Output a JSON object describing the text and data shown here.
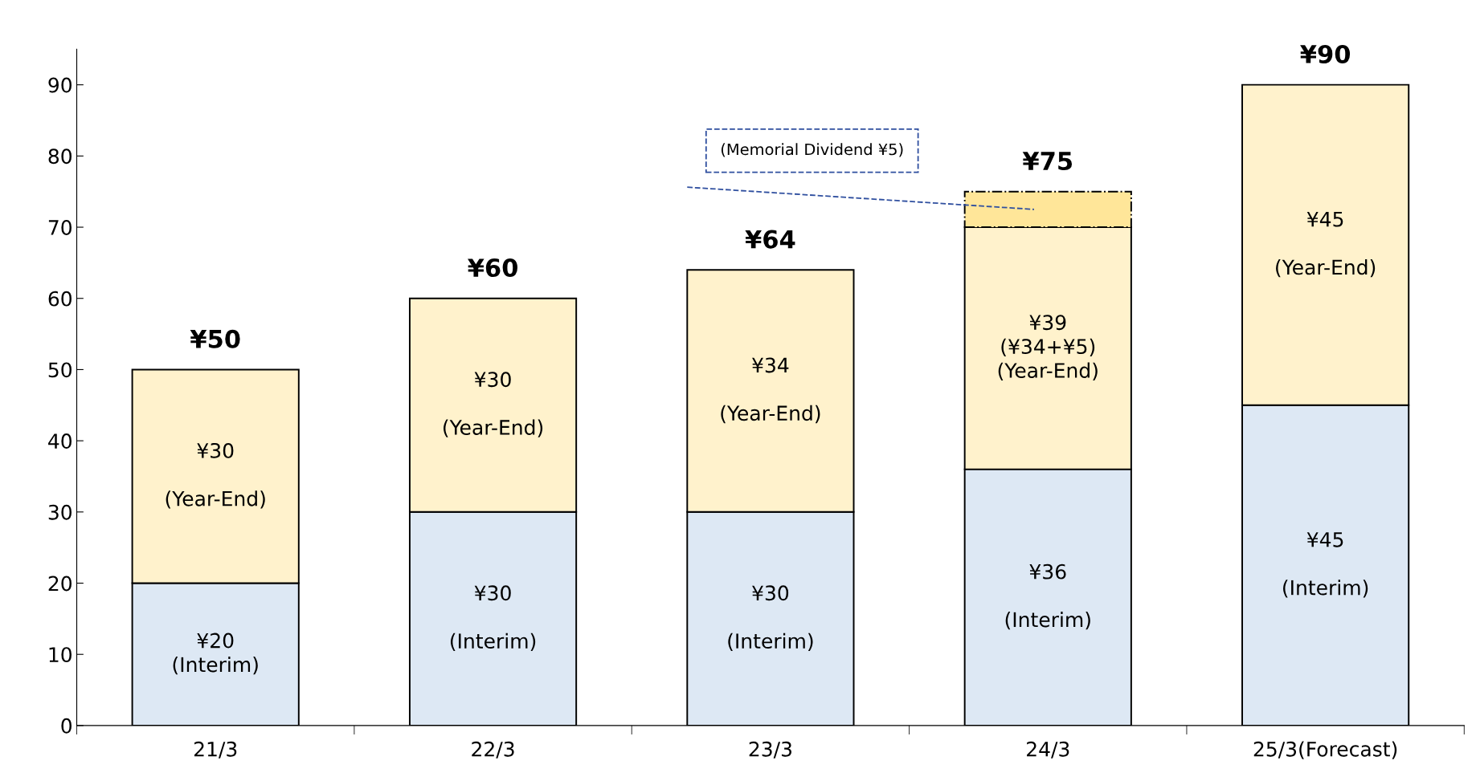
{
  "chart_data": {
    "type": "bar",
    "stacked": true,
    "categories": [
      "21/3",
      "22/3",
      "23/3",
      "24/3",
      "25/3(Forecast)"
    ],
    "series": [
      {
        "color": "#dde8f4",
        "values": [
          20,
          30,
          30,
          36,
          45
        ],
        "value_labels": [
          "¥20\n(Interim)",
          "¥30\n\n(Interim)",
          "¥30\n\n(Interim)",
          "¥36\n\n(Interim)",
          "¥45\n\n(Interim)"
        ]
      },
      {
        "color": "#fff2cc",
        "values": [
          30,
          30,
          34,
          34,
          45
        ],
        "value_labels": [
          "¥30\n\n(Year-End)",
          "¥30\n\n(Year-End)",
          "¥34\n\n(Year-End)",
          "¥39\n(¥34+¥5)\n(Year-End)",
          "¥45\n\n(Year-End)"
        ]
      },
      {
        "color": "#ffe699",
        "values": [
          null,
          null,
          null,
          5,
          null
        ]
      }
    ],
    "totals": [
      "¥50",
      "¥60",
      "¥64",
      "¥75",
      "¥90"
    ],
    "annotations": [
      "(Memorial Dividend ¥5)"
    ],
    "ylim": [
      0,
      95
    ],
    "yticks": [
      0,
      10,
      20,
      30,
      40,
      50,
      60,
      70,
      80,
      90
    ],
    "grid": false,
    "legend": false
  }
}
